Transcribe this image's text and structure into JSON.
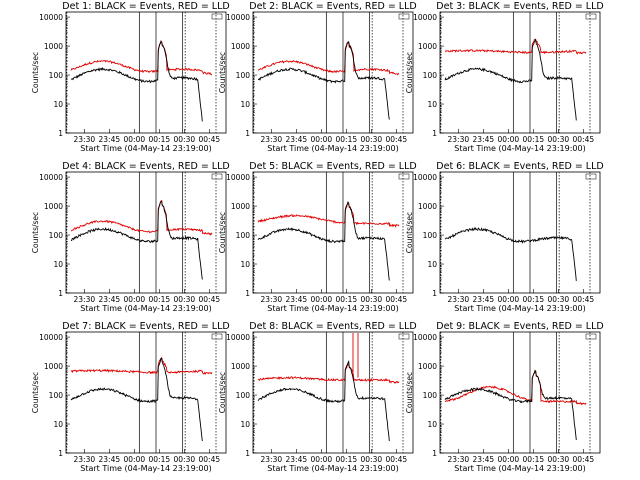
{
  "start_time_label": "Start Time (04-May-14 23:19:00)",
  "ylabel": "Counts/sec",
  "colors": {
    "events": "#000000",
    "lld": "#e00000"
  },
  "chart_data": [
    {
      "type": "line",
      "title": "Det 1: BLACK = Events, RED = LLD",
      "has_lld": true,
      "lld": "one",
      "peak_scale": 1.0,
      "gap": false
    },
    {
      "type": "line",
      "title": "Det 2: BLACK = Events, RED = LLD",
      "has_lld": true,
      "lld": "one",
      "peak_scale": 0.95,
      "gap": false
    },
    {
      "type": "line",
      "title": "Det 3: BLACK = Events, RED = LLD",
      "has_lld": true,
      "lld": "flat700",
      "peak_scale": 1.1,
      "gap": false
    },
    {
      "type": "line",
      "title": "Det 4: BLACK = Events, RED = LLD",
      "has_lld": true,
      "lld": "one",
      "peak_scale": 1.0,
      "gap": false
    },
    {
      "type": "line",
      "title": "Det 5: BLACK = Events, RED = LLD",
      "has_lld": true,
      "lld": "mid",
      "peak_scale": 0.9,
      "gap": false
    },
    {
      "type": "line",
      "title": "Det 6: BLACK = Events, RED = LLD",
      "has_lld": false,
      "lld": "none",
      "peak_scale": 0.0,
      "gap": false
    },
    {
      "type": "line",
      "title": "Det 7: BLACK = Events, RED = LLD",
      "has_lld": true,
      "lld": "flat700",
      "peak_scale": 1.2,
      "gap": false
    },
    {
      "type": "line",
      "title": "Det 8: BLACK = Events, RED = LLD",
      "has_lld": true,
      "lld": "flat400",
      "peak_scale": 0.9,
      "gap": true
    },
    {
      "type": "line",
      "title": "Det 9: BLACK = Events, RED = LLD",
      "has_lld": true,
      "lld": "low",
      "peak_scale": 0.45,
      "gap": false
    }
  ],
  "y_ticks": [
    "10000",
    "1000",
    "100",
    "10",
    "1"
  ],
  "x_ticks": [
    "23:30",
    "23:45",
    "00:00",
    "00:15",
    "00:30",
    "00:45"
  ],
  "ylim": [
    1,
    15000
  ],
  "xlim_minutes": [
    0,
    96
  ]
}
